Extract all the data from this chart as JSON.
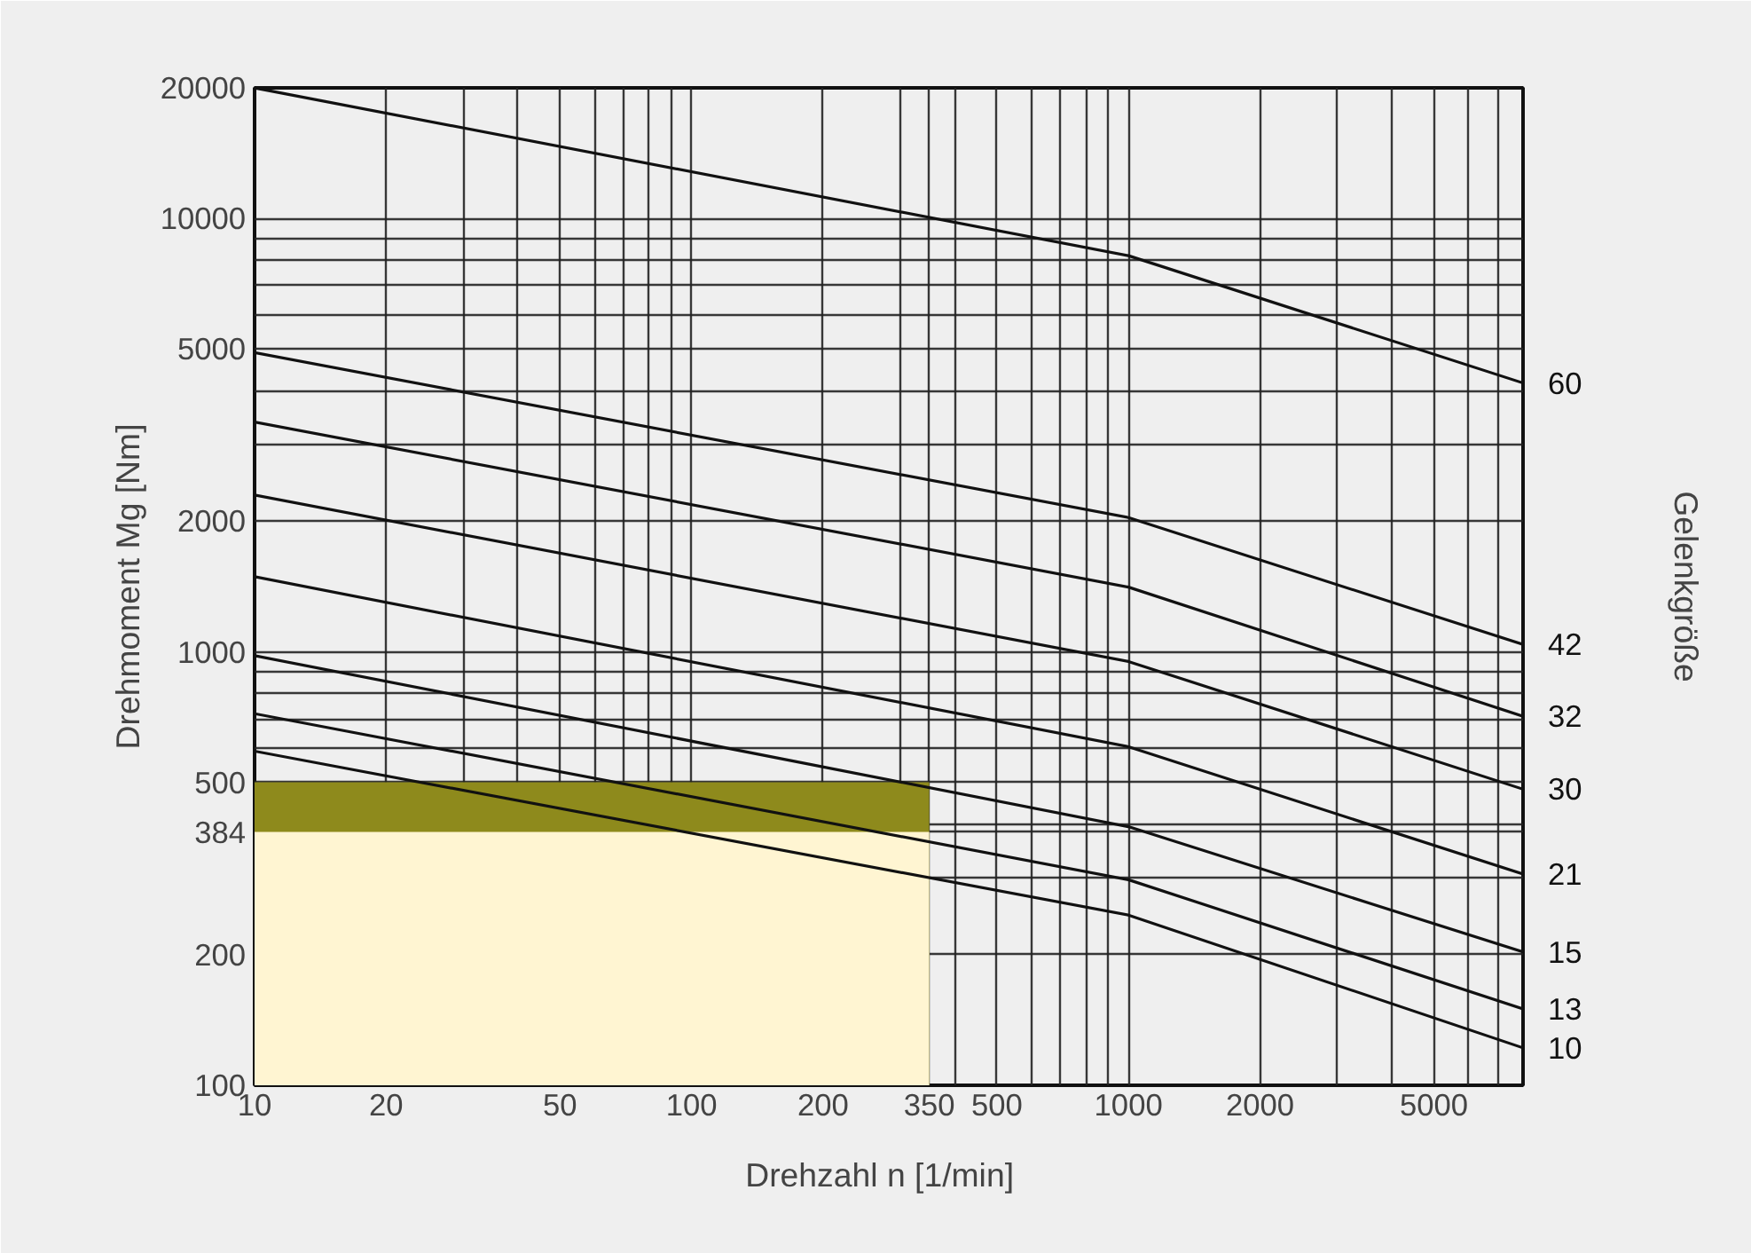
{
  "chart_data": {
    "type": "line",
    "xlabel": "Drehzahl  n  [1/min]",
    "ylabel": "Drehmoment Mg [Nm]",
    "y2label": "Gelenkgröße",
    "log": "xy",
    "grid": true,
    "xlim": [
      10,
      8000
    ],
    "ylim": [
      100,
      20000
    ],
    "xticks": [
      10,
      {
        "value": 20,
        "label": "20"
      },
      {
        "value": 30,
        "label": null
      },
      {
        "value": 40,
        "label": null
      },
      50,
      {
        "value": 60,
        "label": null
      },
      {
        "value": 70,
        "label": null
      },
      {
        "value": 80,
        "label": null
      },
      {
        "value": 90,
        "label": null
      },
      100,
      200,
      {
        "value": 300,
        "label": null
      },
      350,
      {
        "value": 400,
        "label": null
      },
      500,
      {
        "value": 600,
        "label": null
      },
      {
        "value": 700,
        "label": null
      },
      {
        "value": 800,
        "label": null
      },
      {
        "value": 900,
        "label": null
      },
      1000,
      2000,
      {
        "value": 3000,
        "label": null
      },
      {
        "value": 4000,
        "label": null
      },
      5000,
      {
        "value": 6000,
        "label": null
      },
      {
        "value": 7000,
        "label": null
      },
      {
        "value": 8000,
        "label": null
      }
    ],
    "yticks": [
      100,
      200,
      {
        "value": 300,
        "label": null
      },
      384,
      {
        "value": 400,
        "label": null
      },
      500,
      {
        "value": 600,
        "label": null
      },
      {
        "value": 700,
        "label": null
      },
      {
        "value": 800,
        "label": null
      },
      {
        "value": 900,
        "label": null
      },
      1000,
      2000,
      {
        "value": 3000,
        "label": null
      },
      {
        "value": 4000,
        "label": null
      },
      5000,
      {
        "value": 6000,
        "label": null
      },
      {
        "value": 7000,
        "label": null
      },
      {
        "value": 8000,
        "label": null
      },
      {
        "value": 9000,
        "label": null
      },
      10000,
      20000
    ],
    "series": [
      {
        "type": "area",
        "color": "#8e8a1c",
        "x": [
          10,
          350
        ],
        "values": [
          500,
          500
        ]
      },
      {
        "type": "area",
        "color": "#fff5d2",
        "x": [
          10,
          350
        ],
        "values": [
          384,
          384
        ]
      },
      {
        "name": "60",
        "color": "#111111",
        "x": [
          10,
          1000,
          8000
        ],
        "values": [
          20000,
          8200,
          4170
        ]
      },
      {
        "name": "42",
        "color": "#111111",
        "x": [
          10,
          1000,
          8000
        ],
        "values": [
          4900,
          2040,
          1040
        ]
      },
      {
        "name": "32",
        "color": "#111111",
        "x": [
          10,
          1000,
          8000
        ],
        "values": [
          3390,
          1410,
          710
        ]
      },
      {
        "name": "30",
        "color": "#111111",
        "x": [
          10,
          1000,
          8000
        ],
        "values": [
          2300,
          950,
          482
        ]
      },
      {
        "name": "21",
        "color": "#111111",
        "x": [
          10,
          1000,
          8000
        ],
        "values": [
          1490,
          604,
          307
        ]
      },
      {
        "name": "15",
        "color": "#111111",
        "x": [
          10,
          1000,
          8000
        ],
        "values": [
          980,
          395,
          203
        ]
      },
      {
        "name": "13",
        "color": "#111111",
        "x": [
          10,
          1000,
          8000
        ],
        "values": [
          720,
          298,
          150
        ]
      },
      {
        "name": "10",
        "color": "#111111",
        "x": [
          10,
          1000,
          8000
        ],
        "values": [
          590,
          247,
          122
        ]
      }
    ]
  }
}
